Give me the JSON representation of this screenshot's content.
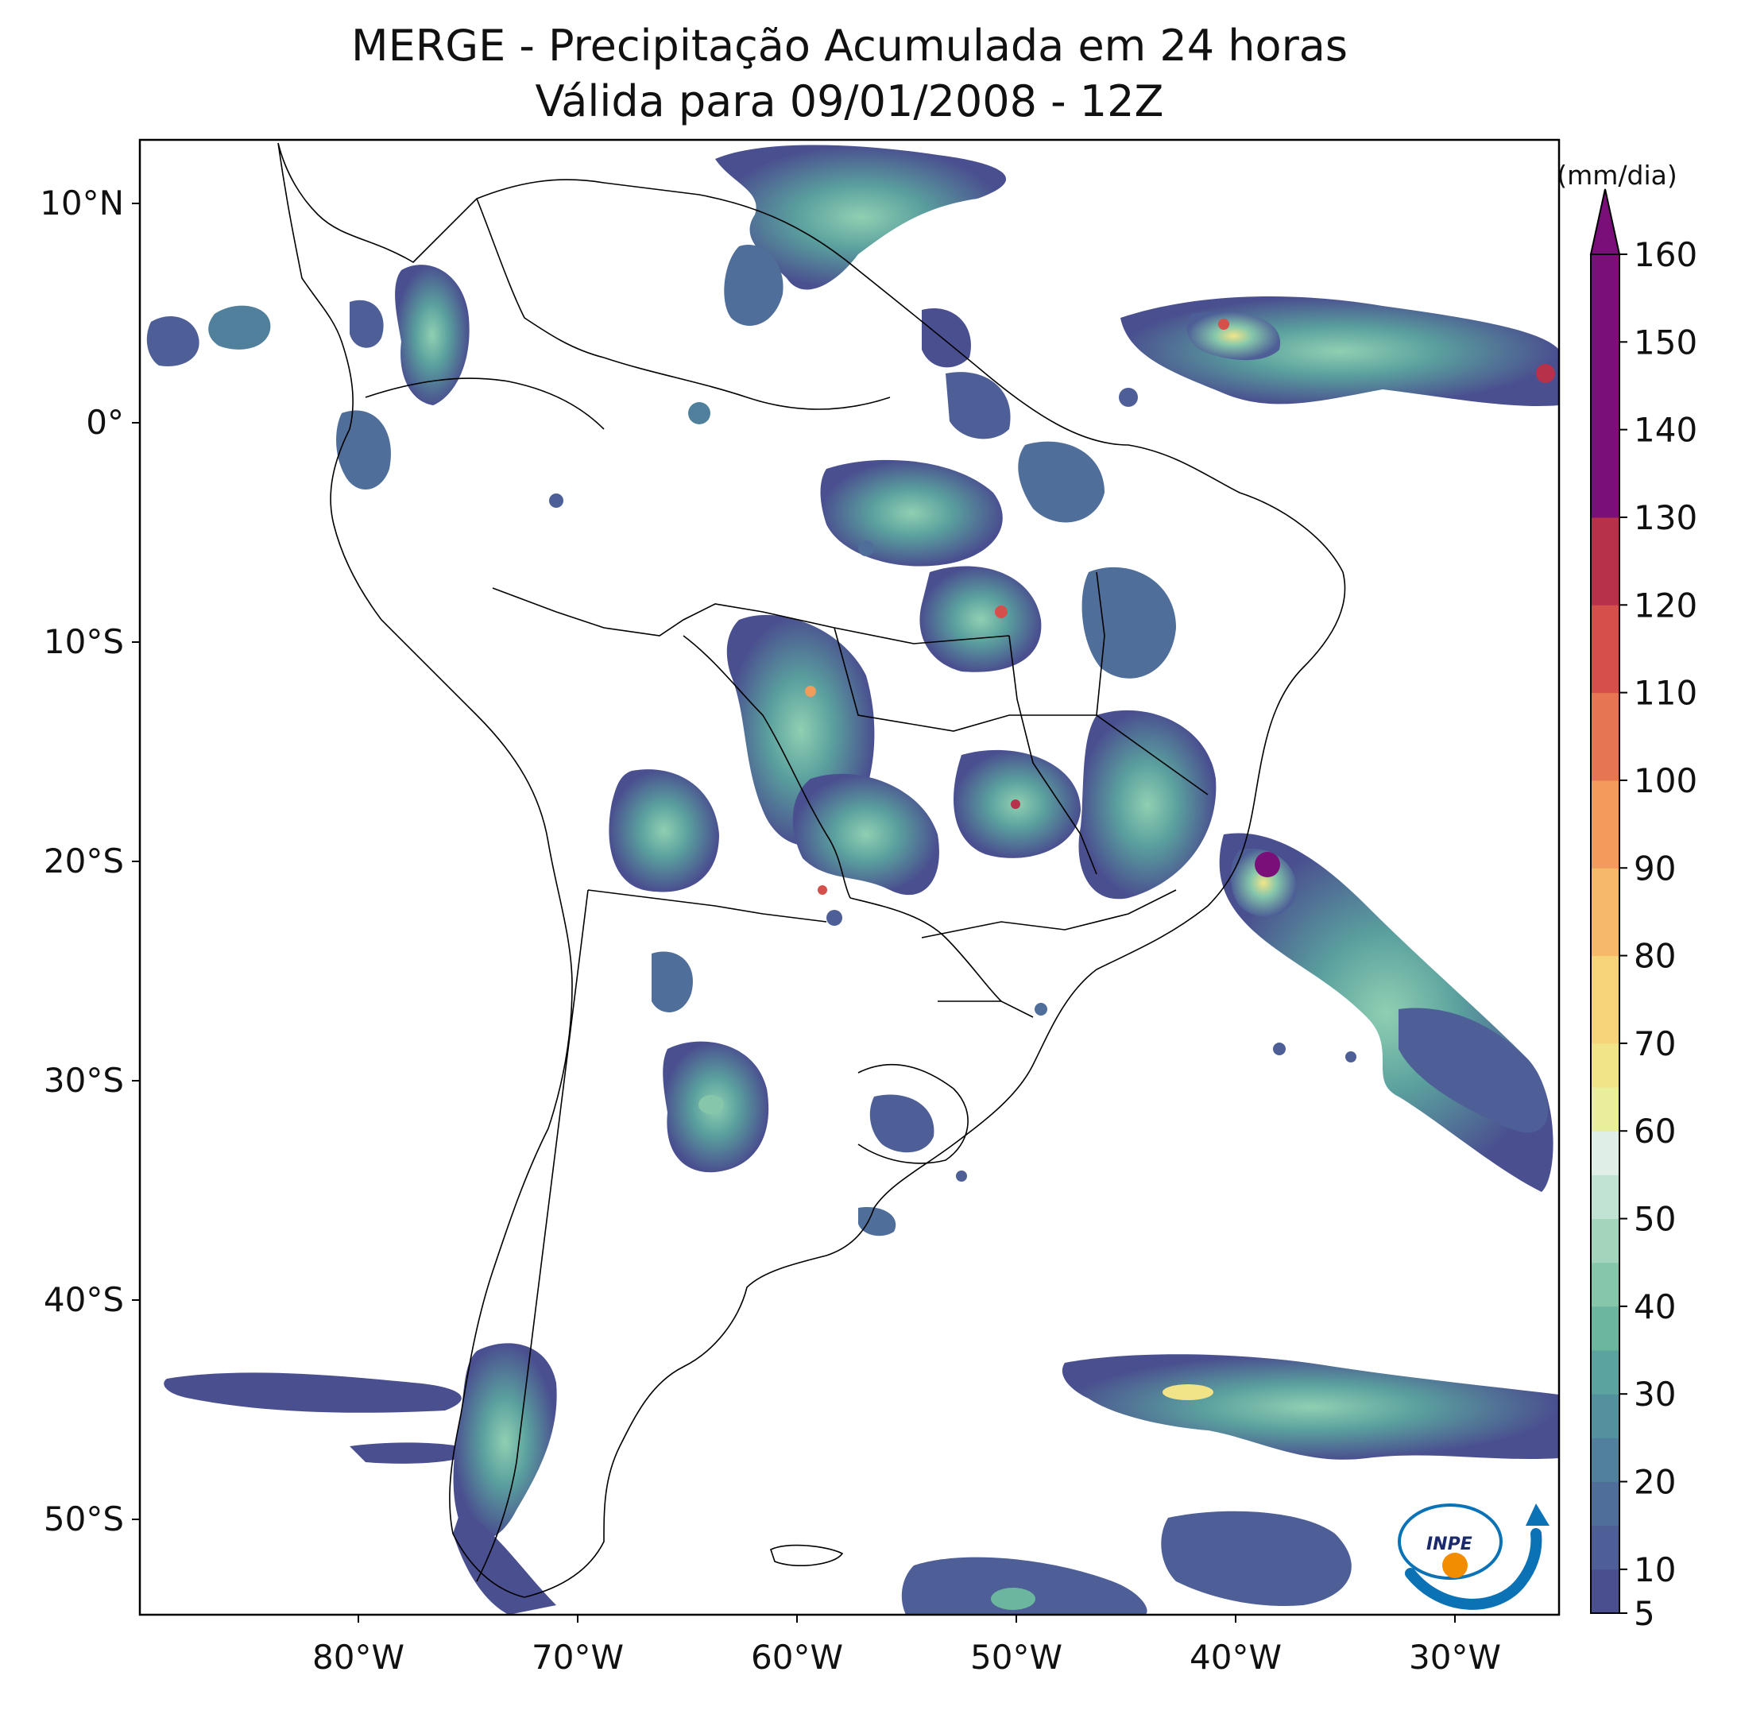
{
  "title": {
    "line1": "MERGE - Precipitação Acumulada em 24 horas",
    "line2": "Válida para 09/01/2008 - 12Z"
  },
  "map": {
    "lat_labels": [
      "10°N",
      "0°",
      "10°S",
      "20°S",
      "30°S",
      "40°S",
      "50°S"
    ],
    "lon_labels": [
      "80°W",
      "70°W",
      "60°W",
      "50°W",
      "40°W",
      "30°W"
    ]
  },
  "colorbar": {
    "unit": "(mm/dia)",
    "tick_labels": [
      "5",
      "10",
      "20",
      "30",
      "40",
      "50",
      "60",
      "70",
      "80",
      "90",
      "100",
      "110",
      "120",
      "130",
      "140",
      "150",
      "160"
    ],
    "extend": "max",
    "colors": [
      "#4a4f8f",
      "#4d5f96",
      "#4f6e9a",
      "#51809d",
      "#53919f",
      "#5aa39e",
      "#6cb6a0",
      "#86c7ab",
      "#a3d4bc",
      "#c1e3d3",
      "#dfeee6",
      "#e8ee9a",
      "#f1e488",
      "#f7d37a",
      "#f6b96a",
      "#f29b5c",
      "#e67653",
      "#d5504a",
      "#b7314a",
      "#7a0f7a"
    ],
    "over_color": "#7a0f7a"
  },
  "logo": {
    "text": "INPE",
    "colors": {
      "ring": "#0a72b5",
      "dot": "#f28c00"
    }
  }
}
